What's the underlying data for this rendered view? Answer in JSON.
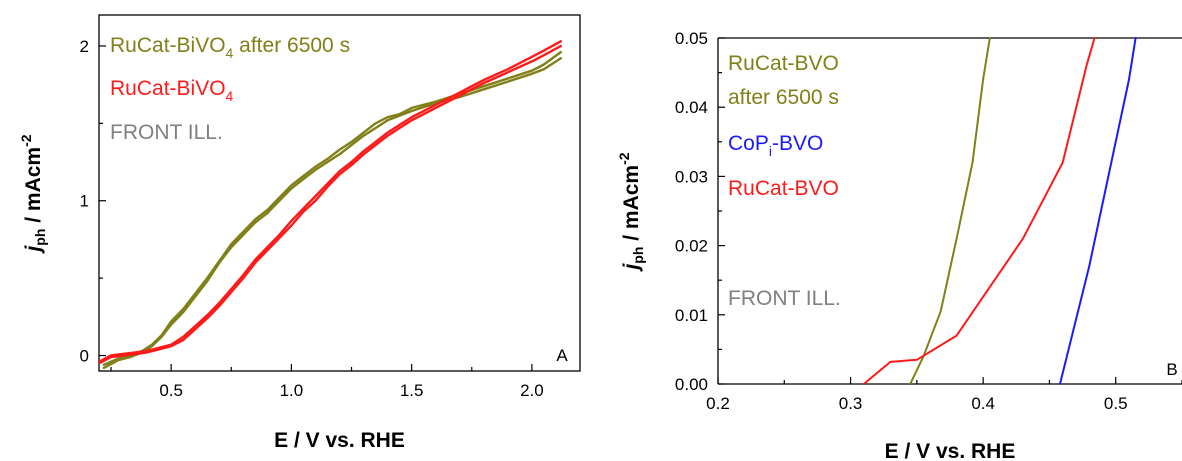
{
  "chart_data": [
    {
      "type": "line",
      "panel_label": "A",
      "xlabel": "E / V vs. RHE",
      "ylabel": {
        "main": "j",
        "sub": "ph",
        "unit": " / mAcm",
        "sup": "-2"
      },
      "xlim": [
        0.2,
        2.2
      ],
      "ylim": [
        -0.1,
        2.2
      ],
      "xticks": [
        0.5,
        1.0,
        1.5,
        2.0
      ],
      "xtick_labels": [
        "0.5",
        "1.0",
        "1.5",
        "2.0"
      ],
      "yticks": [
        0,
        1,
        2
      ],
      "ytick_labels": [
        "0",
        "1",
        "2"
      ],
      "legend": [
        {
          "text": "RuCat-BiVO",
          "sub": "4",
          "suffix": " after 6500 s",
          "color": "#808019"
        },
        {
          "text": "RuCat-BiVO",
          "sub": "4",
          "suffix": "",
          "color": "#ff1a1a"
        },
        {
          "text": "FRONT ILL.",
          "sub": "",
          "suffix": "",
          "color": "#808080"
        }
      ],
      "series": [
        {
          "color": "#808019",
          "points": [
            [
              0.22,
              -0.08
            ],
            [
              0.28,
              -0.03
            ],
            [
              0.33,
              -0.01
            ],
            [
              0.38,
              0.02
            ],
            [
              0.42,
              0.06
            ],
            [
              0.46,
              0.12
            ],
            [
              0.5,
              0.2
            ],
            [
              0.55,
              0.28
            ],
            [
              0.6,
              0.38
            ],
            [
              0.65,
              0.48
            ],
            [
              0.7,
              0.6
            ],
            [
              0.75,
              0.7
            ],
            [
              0.8,
              0.78
            ],
            [
              0.85,
              0.86
            ],
            [
              0.9,
              0.92
            ],
            [
              0.95,
              1.0
            ],
            [
              1.0,
              1.08
            ],
            [
              1.05,
              1.14
            ],
            [
              1.1,
              1.2
            ],
            [
              1.15,
              1.25
            ],
            [
              1.2,
              1.3
            ],
            [
              1.25,
              1.36
            ],
            [
              1.3,
              1.42
            ],
            [
              1.35,
              1.47
            ],
            [
              1.4,
              1.52
            ],
            [
              1.45,
              1.55
            ],
            [
              1.5,
              1.58
            ],
            [
              1.6,
              1.63
            ],
            [
              1.7,
              1.67
            ],
            [
              1.8,
              1.72
            ],
            [
              1.9,
              1.77
            ],
            [
              2.0,
              1.82
            ],
            [
              2.05,
              1.85
            ],
            [
              2.12,
              1.92
            ]
          ]
        },
        {
          "color": "#808019",
          "points": [
            [
              0.22,
              -0.06
            ],
            [
              0.28,
              -0.02
            ],
            [
              0.33,
              0.0
            ],
            [
              0.38,
              0.03
            ],
            [
              0.42,
              0.07
            ],
            [
              0.46,
              0.13
            ],
            [
              0.5,
              0.22
            ],
            [
              0.55,
              0.3
            ],
            [
              0.6,
              0.4
            ],
            [
              0.65,
              0.5
            ],
            [
              0.7,
              0.61
            ],
            [
              0.75,
              0.72
            ],
            [
              0.8,
              0.8
            ],
            [
              0.85,
              0.88
            ],
            [
              0.9,
              0.94
            ],
            [
              0.95,
              1.02
            ],
            [
              1.0,
              1.1
            ],
            [
              1.05,
              1.16
            ],
            [
              1.1,
              1.22
            ],
            [
              1.15,
              1.27
            ],
            [
              1.2,
              1.33
            ],
            [
              1.25,
              1.38
            ],
            [
              1.3,
              1.44
            ],
            [
              1.35,
              1.5
            ],
            [
              1.4,
              1.54
            ],
            [
              1.45,
              1.56
            ],
            [
              1.5,
              1.6
            ],
            [
              1.6,
              1.64
            ],
            [
              1.7,
              1.69
            ],
            [
              1.8,
              1.74
            ],
            [
              1.9,
              1.79
            ],
            [
              2.0,
              1.84
            ],
            [
              2.05,
              1.88
            ],
            [
              2.12,
              1.96
            ]
          ]
        },
        {
          "color": "#ff1a1a",
          "points": [
            [
              0.2,
              -0.05
            ],
            [
              0.25,
              -0.01
            ],
            [
              0.3,
              0.0
            ],
            [
              0.35,
              0.01
            ],
            [
              0.4,
              0.02
            ],
            [
              0.45,
              0.04
            ],
            [
              0.5,
              0.06
            ],
            [
              0.55,
              0.1
            ],
            [
              0.6,
              0.17
            ],
            [
              0.65,
              0.24
            ],
            [
              0.7,
              0.32
            ],
            [
              0.75,
              0.41
            ],
            [
              0.8,
              0.5
            ],
            [
              0.85,
              0.6
            ],
            [
              0.9,
              0.68
            ],
            [
              0.95,
              0.76
            ],
            [
              1.0,
              0.84
            ],
            [
              1.05,
              0.93
            ],
            [
              1.1,
              1.0
            ],
            [
              1.15,
              1.09
            ],
            [
              1.2,
              1.17
            ],
            [
              1.25,
              1.23
            ],
            [
              1.3,
              1.3
            ],
            [
              1.35,
              1.36
            ],
            [
              1.4,
              1.42
            ],
            [
              1.45,
              1.47
            ],
            [
              1.5,
              1.52
            ],
            [
              1.6,
              1.6
            ],
            [
              1.7,
              1.68
            ],
            [
              1.8,
              1.76
            ],
            [
              1.9,
              1.83
            ],
            [
              2.0,
              1.9
            ],
            [
              2.05,
              1.94
            ],
            [
              2.12,
              2.0
            ]
          ]
        },
        {
          "color": "#ff1a1a",
          "points": [
            [
              0.2,
              -0.04
            ],
            [
              0.25,
              0.0
            ],
            [
              0.3,
              0.01
            ],
            [
              0.35,
              0.02
            ],
            [
              0.4,
              0.03
            ],
            [
              0.45,
              0.05
            ],
            [
              0.5,
              0.07
            ],
            [
              0.55,
              0.12
            ],
            [
              0.6,
              0.19
            ],
            [
              0.65,
              0.26
            ],
            [
              0.7,
              0.34
            ],
            [
              0.75,
              0.43
            ],
            [
              0.8,
              0.52
            ],
            [
              0.85,
              0.62
            ],
            [
              0.9,
              0.7
            ],
            [
              0.95,
              0.78
            ],
            [
              1.0,
              0.87
            ],
            [
              1.05,
              0.95
            ],
            [
              1.1,
              1.03
            ],
            [
              1.15,
              1.11
            ],
            [
              1.2,
              1.19
            ],
            [
              1.25,
              1.25
            ],
            [
              1.3,
              1.32
            ],
            [
              1.35,
              1.38
            ],
            [
              1.4,
              1.44
            ],
            [
              1.45,
              1.49
            ],
            [
              1.5,
              1.54
            ],
            [
              1.6,
              1.62
            ],
            [
              1.7,
              1.7
            ],
            [
              1.8,
              1.78
            ],
            [
              1.9,
              1.85
            ],
            [
              2.0,
              1.93
            ],
            [
              2.05,
              1.97
            ],
            [
              2.12,
              2.03
            ]
          ]
        }
      ]
    },
    {
      "type": "line",
      "panel_label": "B",
      "xlabel": "E / V vs. RHE",
      "ylabel": {
        "main": "j",
        "sub": "ph",
        "unit": " / mAcm",
        "sup": "-2"
      },
      "xlim": [
        0.2,
        0.55
      ],
      "ylim": [
        0.0,
        0.05
      ],
      "xticks": [
        0.2,
        0.3,
        0.4,
        0.5
      ],
      "xtick_labels": [
        "0.2",
        "0.3",
        "0.4",
        "0.5"
      ],
      "yticks": [
        0.0,
        0.01,
        0.02,
        0.03,
        0.04,
        0.05
      ],
      "ytick_labels": [
        "0.00",
        "0.01",
        "0.02",
        "0.03",
        "0.04",
        "0.05"
      ],
      "legend": [
        {
          "text": "RuCat-BVO",
          "sub": "",
          "suffix": "",
          "color": "#808019"
        },
        {
          "text": "after 6500 s",
          "sub": "",
          "suffix": "",
          "color": "#808019"
        },
        {
          "text": "CoP",
          "sub": "i",
          "suffix": "-BVO",
          "color": "#1a1aff"
        },
        {
          "text": "RuCat-BVO",
          "sub": "",
          "suffix": "",
          "color": "#ff1a1a"
        },
        {
          "text": "FRONT ILL.",
          "sub": "",
          "suffix": "",
          "color": "#808080"
        }
      ],
      "series": [
        {
          "color": "#808019",
          "points": [
            [
              0.345,
              0.0
            ],
            [
              0.355,
              0.004
            ],
            [
              0.368,
              0.0105
            ],
            [
              0.38,
              0.021
            ],
            [
              0.392,
              0.032
            ],
            [
              0.4,
              0.044
            ],
            [
              0.405,
              0.05
            ]
          ]
        },
        {
          "color": "#ff1a1a",
          "points": [
            [
              0.31,
              0.0
            ],
            [
              0.33,
              0.0032
            ],
            [
              0.35,
              0.0035
            ],
            [
              0.38,
              0.007
            ],
            [
              0.43,
              0.021
            ],
            [
              0.46,
              0.032
            ],
            [
              0.478,
              0.046
            ],
            [
              0.484,
              0.05
            ]
          ]
        },
        {
          "color": "#1a1aff",
          "points": [
            [
              0.458,
              0.0
            ],
            [
              0.48,
              0.017
            ],
            [
              0.5,
              0.035
            ],
            [
              0.51,
              0.044
            ],
            [
              0.515,
              0.05
            ]
          ]
        }
      ]
    }
  ]
}
